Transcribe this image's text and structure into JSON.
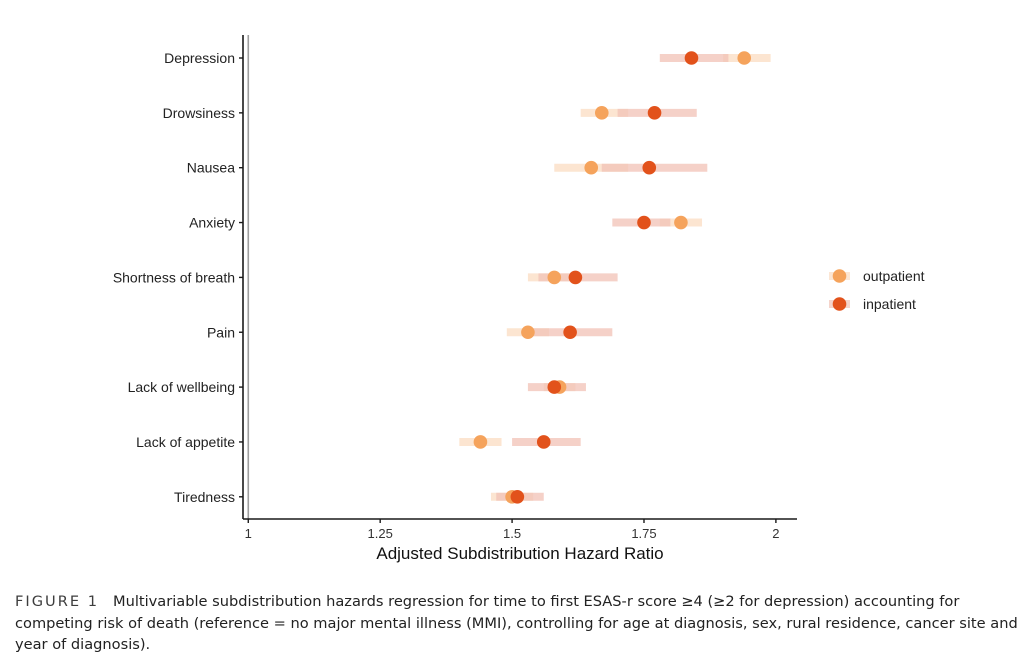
{
  "chart_data": {
    "type": "scatter",
    "title": "",
    "xlabel": "Adjusted Subdistribution Hazard Ratio",
    "ylabel": "",
    "xlim": [
      0.99,
      2.04
    ],
    "xticks": [
      1,
      1.25,
      1.5,
      1.75,
      2
    ],
    "xtick_labels": [
      "1",
      "1.25",
      "1.5",
      "1.75",
      "2"
    ],
    "reference_line": 1,
    "grid": false,
    "legend_position": "right",
    "categories": [
      "Depression",
      "Drowsiness",
      "Nausea",
      "Anxiety",
      "Shortness of breath",
      "Pain",
      "Lack of wellbeing",
      "Lack of appetite",
      "Tiredness"
    ],
    "series": [
      {
        "name": "outpatient",
        "color": "#f5a35c",
        "values": [
          1.94,
          1.67,
          1.65,
          1.82,
          1.58,
          1.53,
          1.59,
          1.44,
          1.5
        ],
        "ci_low": [
          1.9,
          1.63,
          1.58,
          1.78,
          1.53,
          1.49,
          1.56,
          1.4,
          1.46
        ],
        "ci_high": [
          1.99,
          1.72,
          1.72,
          1.86,
          1.63,
          1.57,
          1.62,
          1.48,
          1.54
        ]
      },
      {
        "name": "inpatient",
        "color": "#e2521b",
        "values": [
          1.84,
          1.77,
          1.76,
          1.75,
          1.62,
          1.61,
          1.58,
          1.56,
          1.51
        ],
        "ci_low": [
          1.78,
          1.7,
          1.67,
          1.69,
          1.55,
          1.54,
          1.53,
          1.5,
          1.47
        ],
        "ci_high": [
          1.91,
          1.85,
          1.87,
          1.8,
          1.7,
          1.69,
          1.64,
          1.63,
          1.56
        ]
      }
    ]
  },
  "caption": {
    "label": "FIGURE 1",
    "text": "Multivariable subdistribution hazards regression for time to first ESAS-r score ≥4 (≥2 for depression) accounting for competing risk of death (reference = no major mental illness (MMI), controlling for age at diagnosis, sex, rural residence, cancer site and year of diagnosis)."
  }
}
